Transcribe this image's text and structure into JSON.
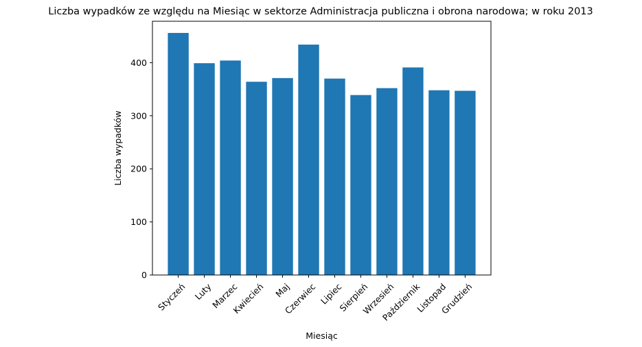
{
  "chart_data": {
    "type": "bar",
    "title": "Liczba wypadków ze względu na Miesiąc w sektorze Administracja publiczna i obrona narodowa; w roku 2013",
    "xlabel": "Miesiąc",
    "ylabel": "Liczba wypadków",
    "categories": [
      "Styczeń",
      "Luty",
      "Marzec",
      "Kwiecień",
      "Maj",
      "Czerwiec",
      "Lipiec",
      "Sierpień",
      "Wrzesień",
      "Październik",
      "Listopad",
      "Grudzień"
    ],
    "values": [
      456,
      399,
      404,
      364,
      371,
      434,
      370,
      339,
      352,
      391,
      348,
      347
    ],
    "ylim": [
      0,
      478
    ],
    "yticks": [
      0,
      100,
      200,
      300,
      400
    ],
    "bar_color": "#1f77b4",
    "grid": false,
    "legend": "none",
    "xtick_rotation": 45
  }
}
